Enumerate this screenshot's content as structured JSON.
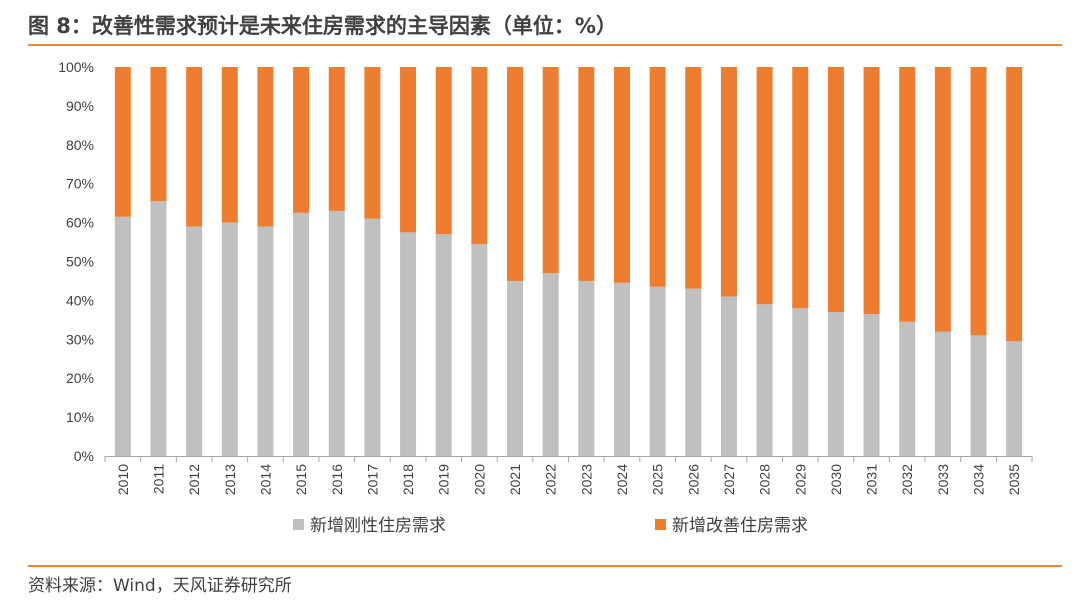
{
  "header": {
    "title": "图 8：改善性需求预计是未来住房需求的主导因素（单位：%）"
  },
  "footer": {
    "source": "资料来源：Wind，天风证券研究所"
  },
  "chart_data": {
    "type": "bar",
    "stacked": "percent",
    "categories": [
      "2010",
      "2011",
      "2012",
      "2013",
      "2014",
      "2015",
      "2016",
      "2017",
      "2018",
      "2019",
      "2020",
      "2021",
      "2022",
      "2023",
      "2024",
      "2025",
      "2026",
      "2027",
      "2028",
      "2029",
      "2030",
      "2031",
      "2032",
      "2033",
      "2034",
      "2035"
    ],
    "series": [
      {
        "name": "新增刚性住房需求",
        "color": "#c0c0c0",
        "values": [
          61.5,
          65.5,
          59,
          60,
          59,
          62.5,
          63,
          61,
          57.5,
          57,
          54.5,
          45,
          47,
          45,
          44.5,
          43.5,
          43,
          41,
          39,
          38,
          37,
          36.5,
          34.5,
          32,
          31,
          29.5
        ]
      },
      {
        "name": "新增改善住房需求",
        "color": "#ed7d31",
        "values": [
          38.5,
          34.5,
          41,
          40,
          41,
          37.5,
          37,
          39,
          42.5,
          43,
          45.5,
          55,
          53,
          55,
          55.5,
          56.5,
          57,
          59,
          61,
          62,
          63,
          63.5,
          65.5,
          68,
          69,
          70.5
        ]
      }
    ],
    "ylim": [
      0,
      100
    ],
    "yticks": [
      "0%",
      "10%",
      "20%",
      "30%",
      "40%",
      "50%",
      "60%",
      "70%",
      "80%",
      "90%",
      "100%"
    ],
    "grid": false,
    "legend_position": "bottom"
  }
}
